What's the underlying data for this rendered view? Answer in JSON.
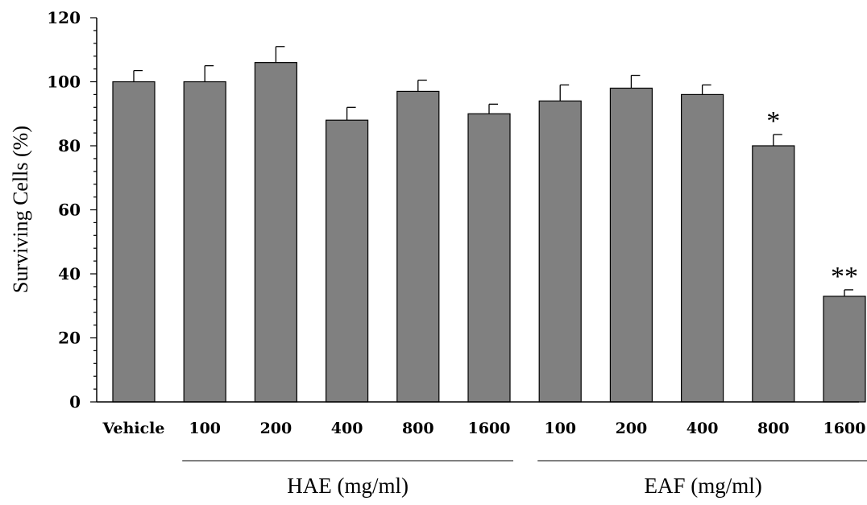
{
  "chart_data": {
    "type": "bar",
    "categories": [
      "Vehicle",
      "100",
      "200",
      "400",
      "800",
      "1600",
      "100",
      "200",
      "400",
      "800",
      "1600"
    ],
    "values": [
      100,
      100,
      106,
      88,
      97,
      90,
      94,
      98,
      96,
      80,
      33
    ],
    "errors": [
      3.5,
      5,
      5,
      4,
      3.5,
      3,
      5,
      4,
      3,
      3.5,
      2
    ],
    "annotations": [
      "",
      "",
      "",
      "",
      "",
      "",
      "",
      "",
      "",
      "*",
      "**"
    ],
    "ylabel": "Surviving Cells (%)",
    "ylim": [
      0,
      120
    ],
    "yticks": [
      "0",
      "20",
      "40",
      "60",
      "80",
      "100",
      "120"
    ],
    "groups": [
      {
        "label": "HAE (mg/ml)",
        "from": 1,
        "to": 5
      },
      {
        "label": "EAF (mg/ml)",
        "from": 6,
        "to": 10
      }
    ],
    "bar_color": "#808080",
    "grid": false,
    "legend": "none"
  }
}
